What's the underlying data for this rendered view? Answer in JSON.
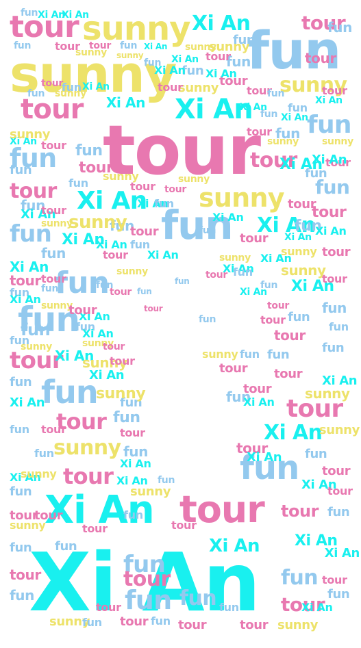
{
  "cloud": {
    "words": {
      "xian": "Xi An",
      "tour": "tour",
      "fun": "fun",
      "sunny": "sunny"
    },
    "colors": {
      "xian": "#19f0ef",
      "tour": "#e878b0",
      "fun": "#93c9ee",
      "sunny": "#ede26a"
    },
    "background": "#ffffff"
  }
}
